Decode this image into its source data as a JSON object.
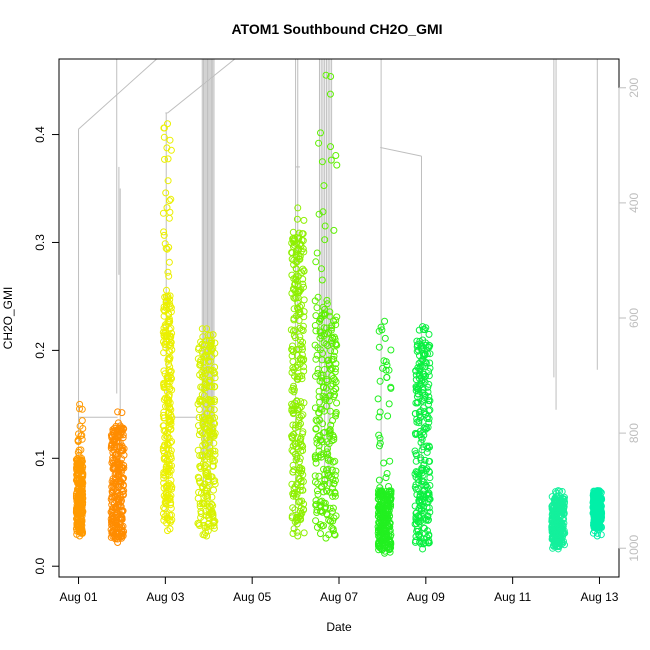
{
  "chart_data": {
    "type": "scatter",
    "title": "ATOM1 Southbound CH2O_GMI",
    "xlabel": "Date",
    "ylabel": "CH2O_GMI",
    "x_unit": "days since Aug 01",
    "xlim": [
      -0.45,
      12.45
    ],
    "ylim": [
      -0.01,
      0.47
    ],
    "x_ticks": [
      {
        "v": 0,
        "label": "Aug 01"
      },
      {
        "v": 2,
        "label": "Aug 03"
      },
      {
        "v": 4,
        "label": "Aug 05"
      },
      {
        "v": 6,
        "label": "Aug 07"
      },
      {
        "v": 8,
        "label": "Aug 09"
      },
      {
        "v": 10,
        "label": "Aug 11"
      },
      {
        "v": 12,
        "label": "Aug 13"
      }
    ],
    "y_ticks": [
      0.0,
      0.1,
      0.2,
      0.3,
      0.4
    ],
    "y_tick_labels": [
      "0.0",
      "0.1",
      "0.2",
      "0.3",
      "0.4"
    ],
    "y2_ticks": [
      200,
      400,
      600,
      800,
      1000
    ],
    "y2_tick_labels": [
      "200",
      "400",
      "600",
      "800",
      "1000"
    ],
    "y2_range": [
      150,
      1050
    ],
    "y2_reversed": true,
    "grid": false,
    "legend": "none",
    "series_pressure_color": "#bebebe",
    "flights": [
      {
        "x": [
          -0.05,
          0.1
        ],
        "ymin": 0.028,
        "ymax": 0.15,
        "dense": [
          0.03,
          0.1
        ],
        "color": "#ff9a00"
      },
      {
        "x": [
          0.75,
          1.05
        ],
        "ymin": 0.022,
        "ymax": 0.143,
        "dense": [
          0.025,
          0.13
        ],
        "color": "#ff8c00"
      },
      {
        "x": [
          1.95,
          2.15
        ],
        "ymin": 0.033,
        "ymax": 0.41,
        "dense": [
          0.04,
          0.25
        ],
        "color": "#ebf000"
      },
      {
        "x": [
          2.75,
          3.15
        ],
        "ymin": 0.028,
        "ymax": 0.22,
        "dense": [
          0.035,
          0.21
        ],
        "color": "#d8f200"
      },
      {
        "x": [
          4.9,
          5.2
        ],
        "ymin": 0.028,
        "ymax": 0.332,
        "dense": [
          0.03,
          0.31
        ],
        "color": "#8ef000"
      },
      {
        "x": [
          5.45,
          5.95
        ],
        "ymin": 0.026,
        "ymax": 0.455,
        "dense": [
          0.028,
          0.24
        ],
        "color": "#5ef000"
      },
      {
        "x": [
          6.9,
          7.2
        ],
        "ymin": 0.012,
        "ymax": 0.227,
        "dense": [
          0.015,
          0.07
        ],
        "color": "#22f020"
      },
      {
        "x": [
          7.75,
          8.1
        ],
        "ymin": 0.016,
        "ymax": 0.222,
        "dense": [
          0.02,
          0.21
        ],
        "color": "#0af040"
      },
      {
        "x": [
          10.9,
          11.2
        ],
        "ymin": 0.016,
        "ymax": 0.07,
        "dense": [
          0.018,
          0.065
        ],
        "color": "#14f09c"
      },
      {
        "x": [
          11.85,
          12.05
        ],
        "ymin": 0.028,
        "ymax": 0.07,
        "dense": [
          0.035,
          0.07
        ],
        "color": "#00f0a8"
      }
    ]
  }
}
